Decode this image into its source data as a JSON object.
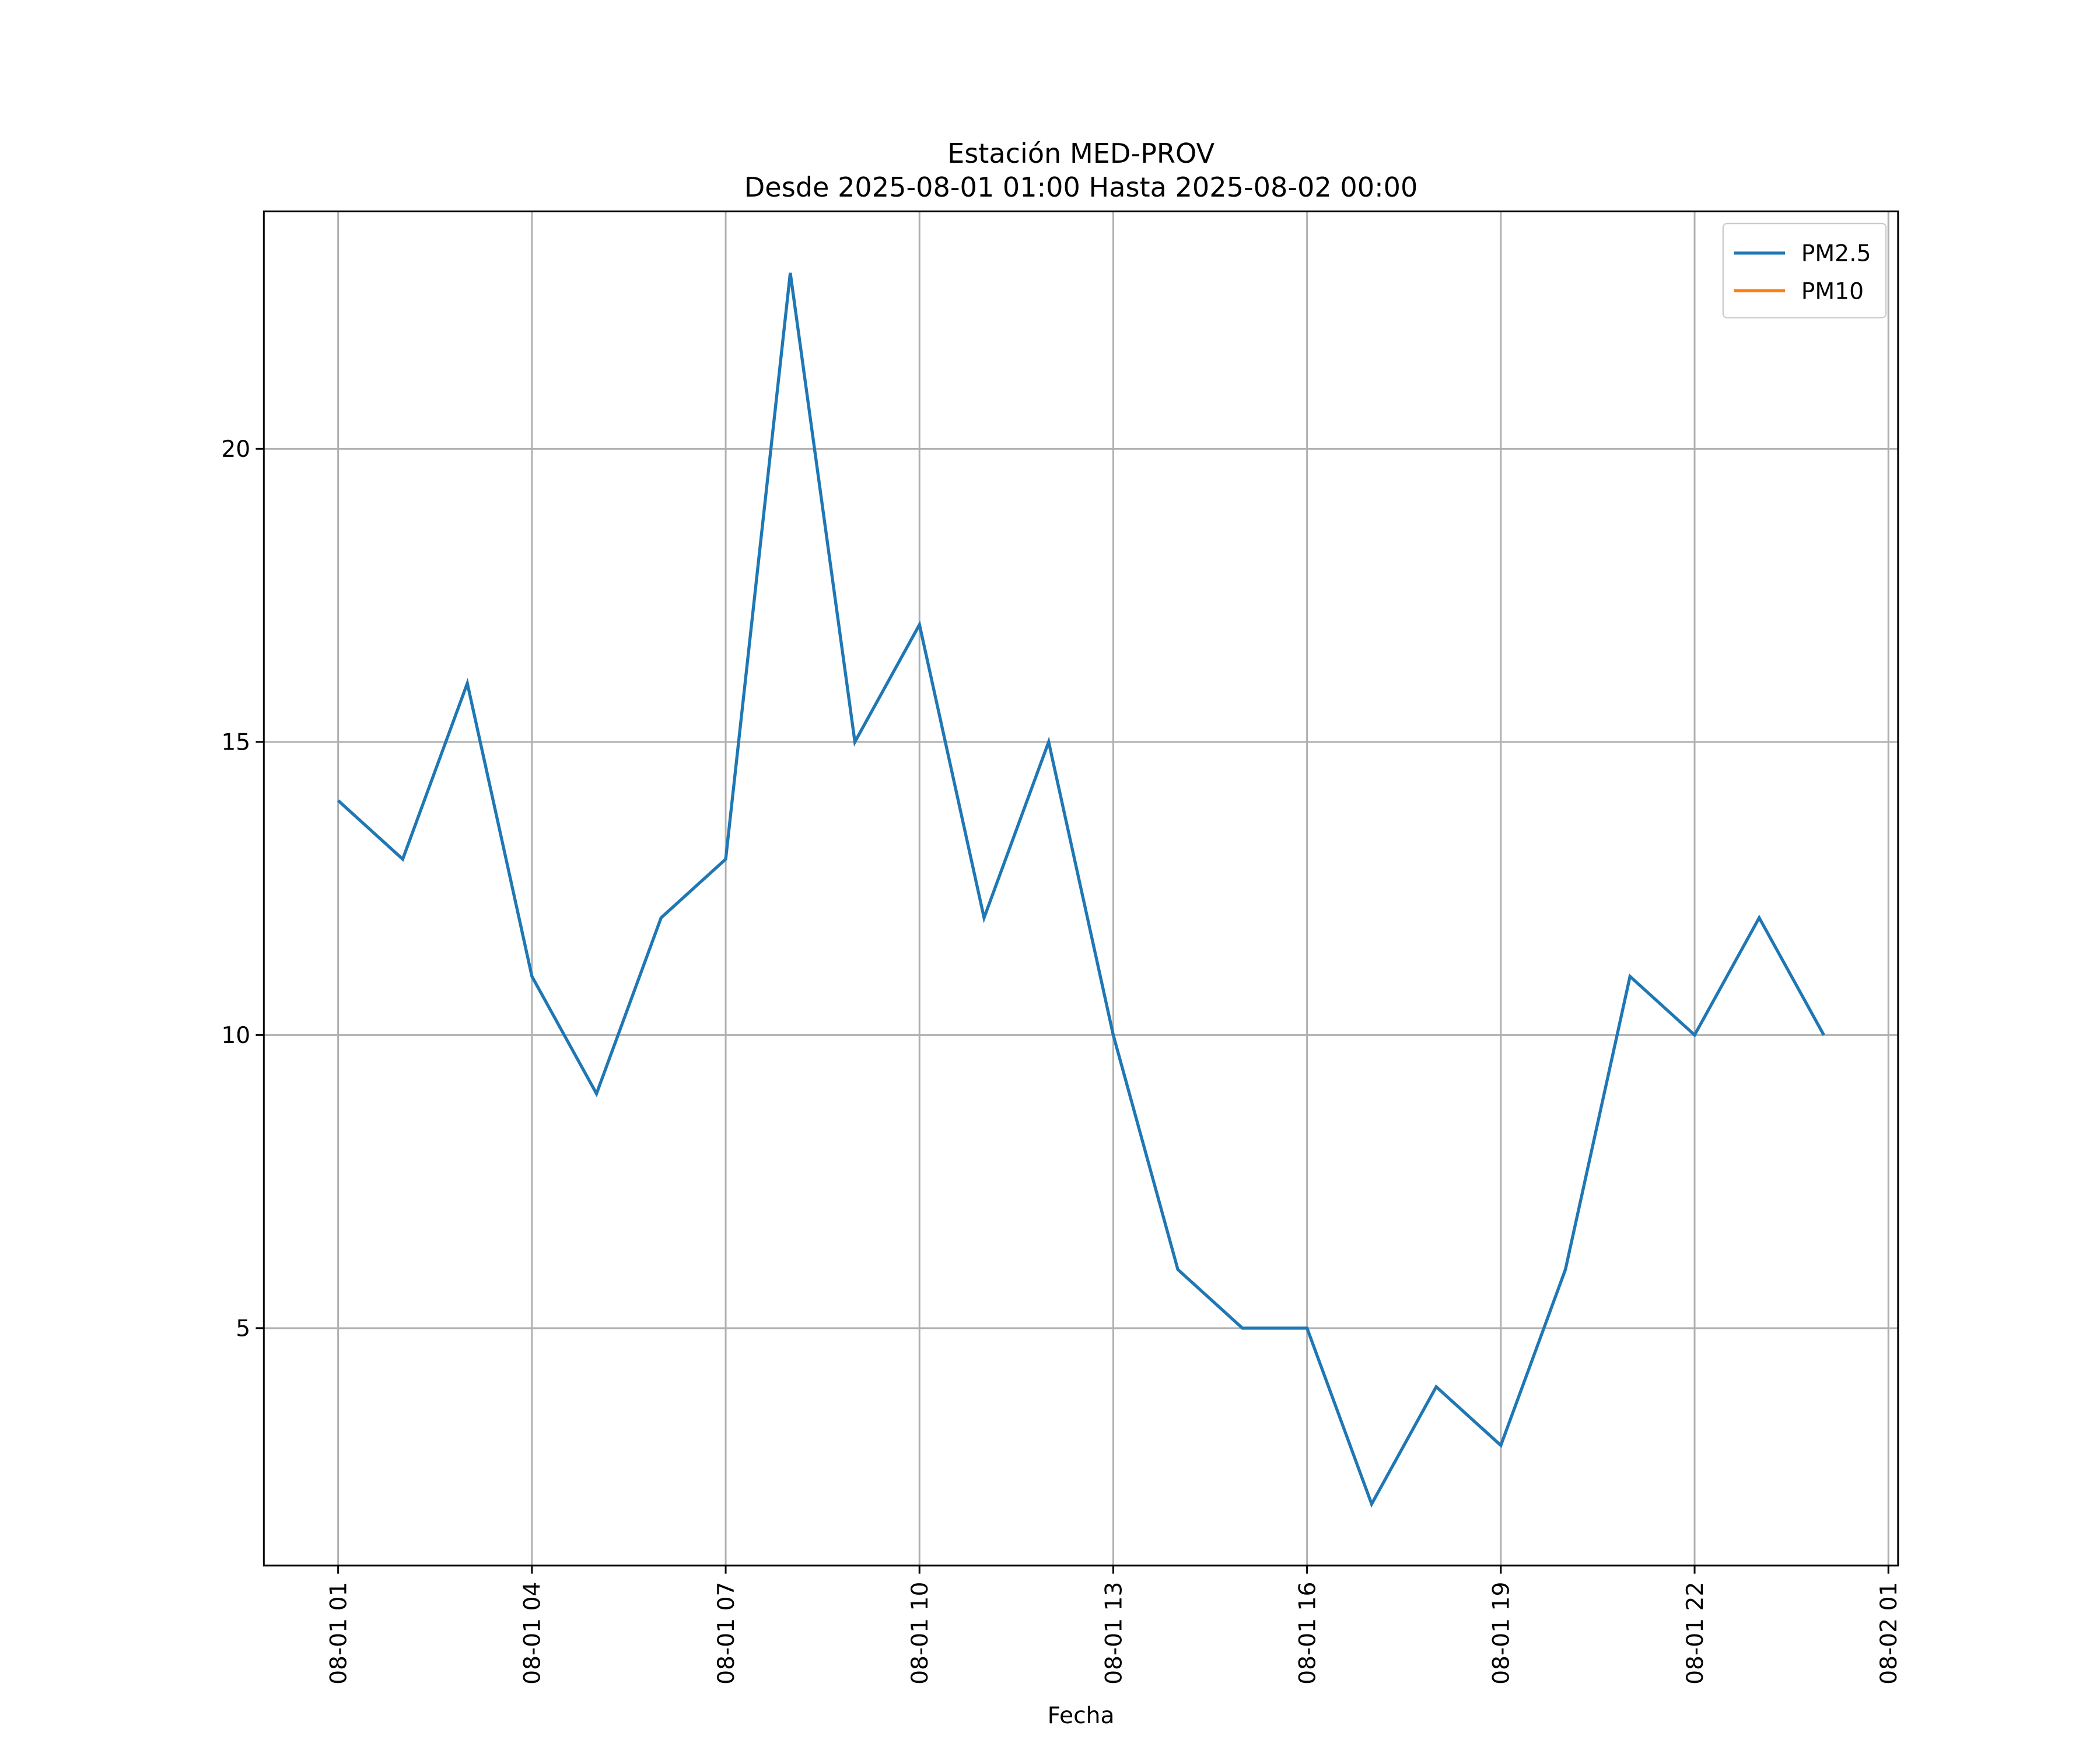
{
  "chart_data": {
    "type": "line",
    "title": "Estación MED-PROV",
    "subtitle": "Desde 2025-08-01 01:00 Hasta 2025-08-02 00:00",
    "xlabel": "Fecha",
    "x": [
      1,
      2,
      3,
      4,
      5,
      6,
      7,
      8,
      9,
      10,
      11,
      12,
      13,
      14,
      15,
      16,
      17,
      18,
      19,
      20,
      21,
      22,
      23,
      24
    ],
    "series": [
      {
        "name": "PM2.5",
        "color": "#1f77b4",
        "values": [
          14,
          13,
          16,
          11,
          9,
          12,
          13,
          23,
          15,
          17,
          12,
          15,
          10,
          6,
          5,
          5,
          2,
          4,
          3,
          6,
          11,
          10,
          12,
          10
        ]
      },
      {
        "name": "PM10",
        "color": "#ff7f0e",
        "values": [
          null,
          null,
          null,
          null,
          null,
          null,
          null,
          null,
          null,
          null,
          null,
          null,
          null,
          null,
          null,
          null,
          null,
          null,
          null,
          null,
          null,
          null,
          null,
          null
        ]
      }
    ],
    "xlim": [
      -0.15,
      25.15
    ],
    "xticks": [
      {
        "value": 1,
        "label": "08-01 01"
      },
      {
        "value": 4,
        "label": "08-01 04"
      },
      {
        "value": 7,
        "label": "08-01 07"
      },
      {
        "value": 10,
        "label": "08-01 10"
      },
      {
        "value": 13,
        "label": "08-01 13"
      },
      {
        "value": 16,
        "label": "08-01 16"
      },
      {
        "value": 19,
        "label": "08-01 19"
      },
      {
        "value": 22,
        "label": "08-01 22"
      },
      {
        "value": 25,
        "label": "08-02 01"
      }
    ],
    "ylim": [
      0.95,
      24.05
    ],
    "yticks": [
      5,
      10,
      15,
      20
    ],
    "grid": true,
    "legend": "upper right"
  }
}
